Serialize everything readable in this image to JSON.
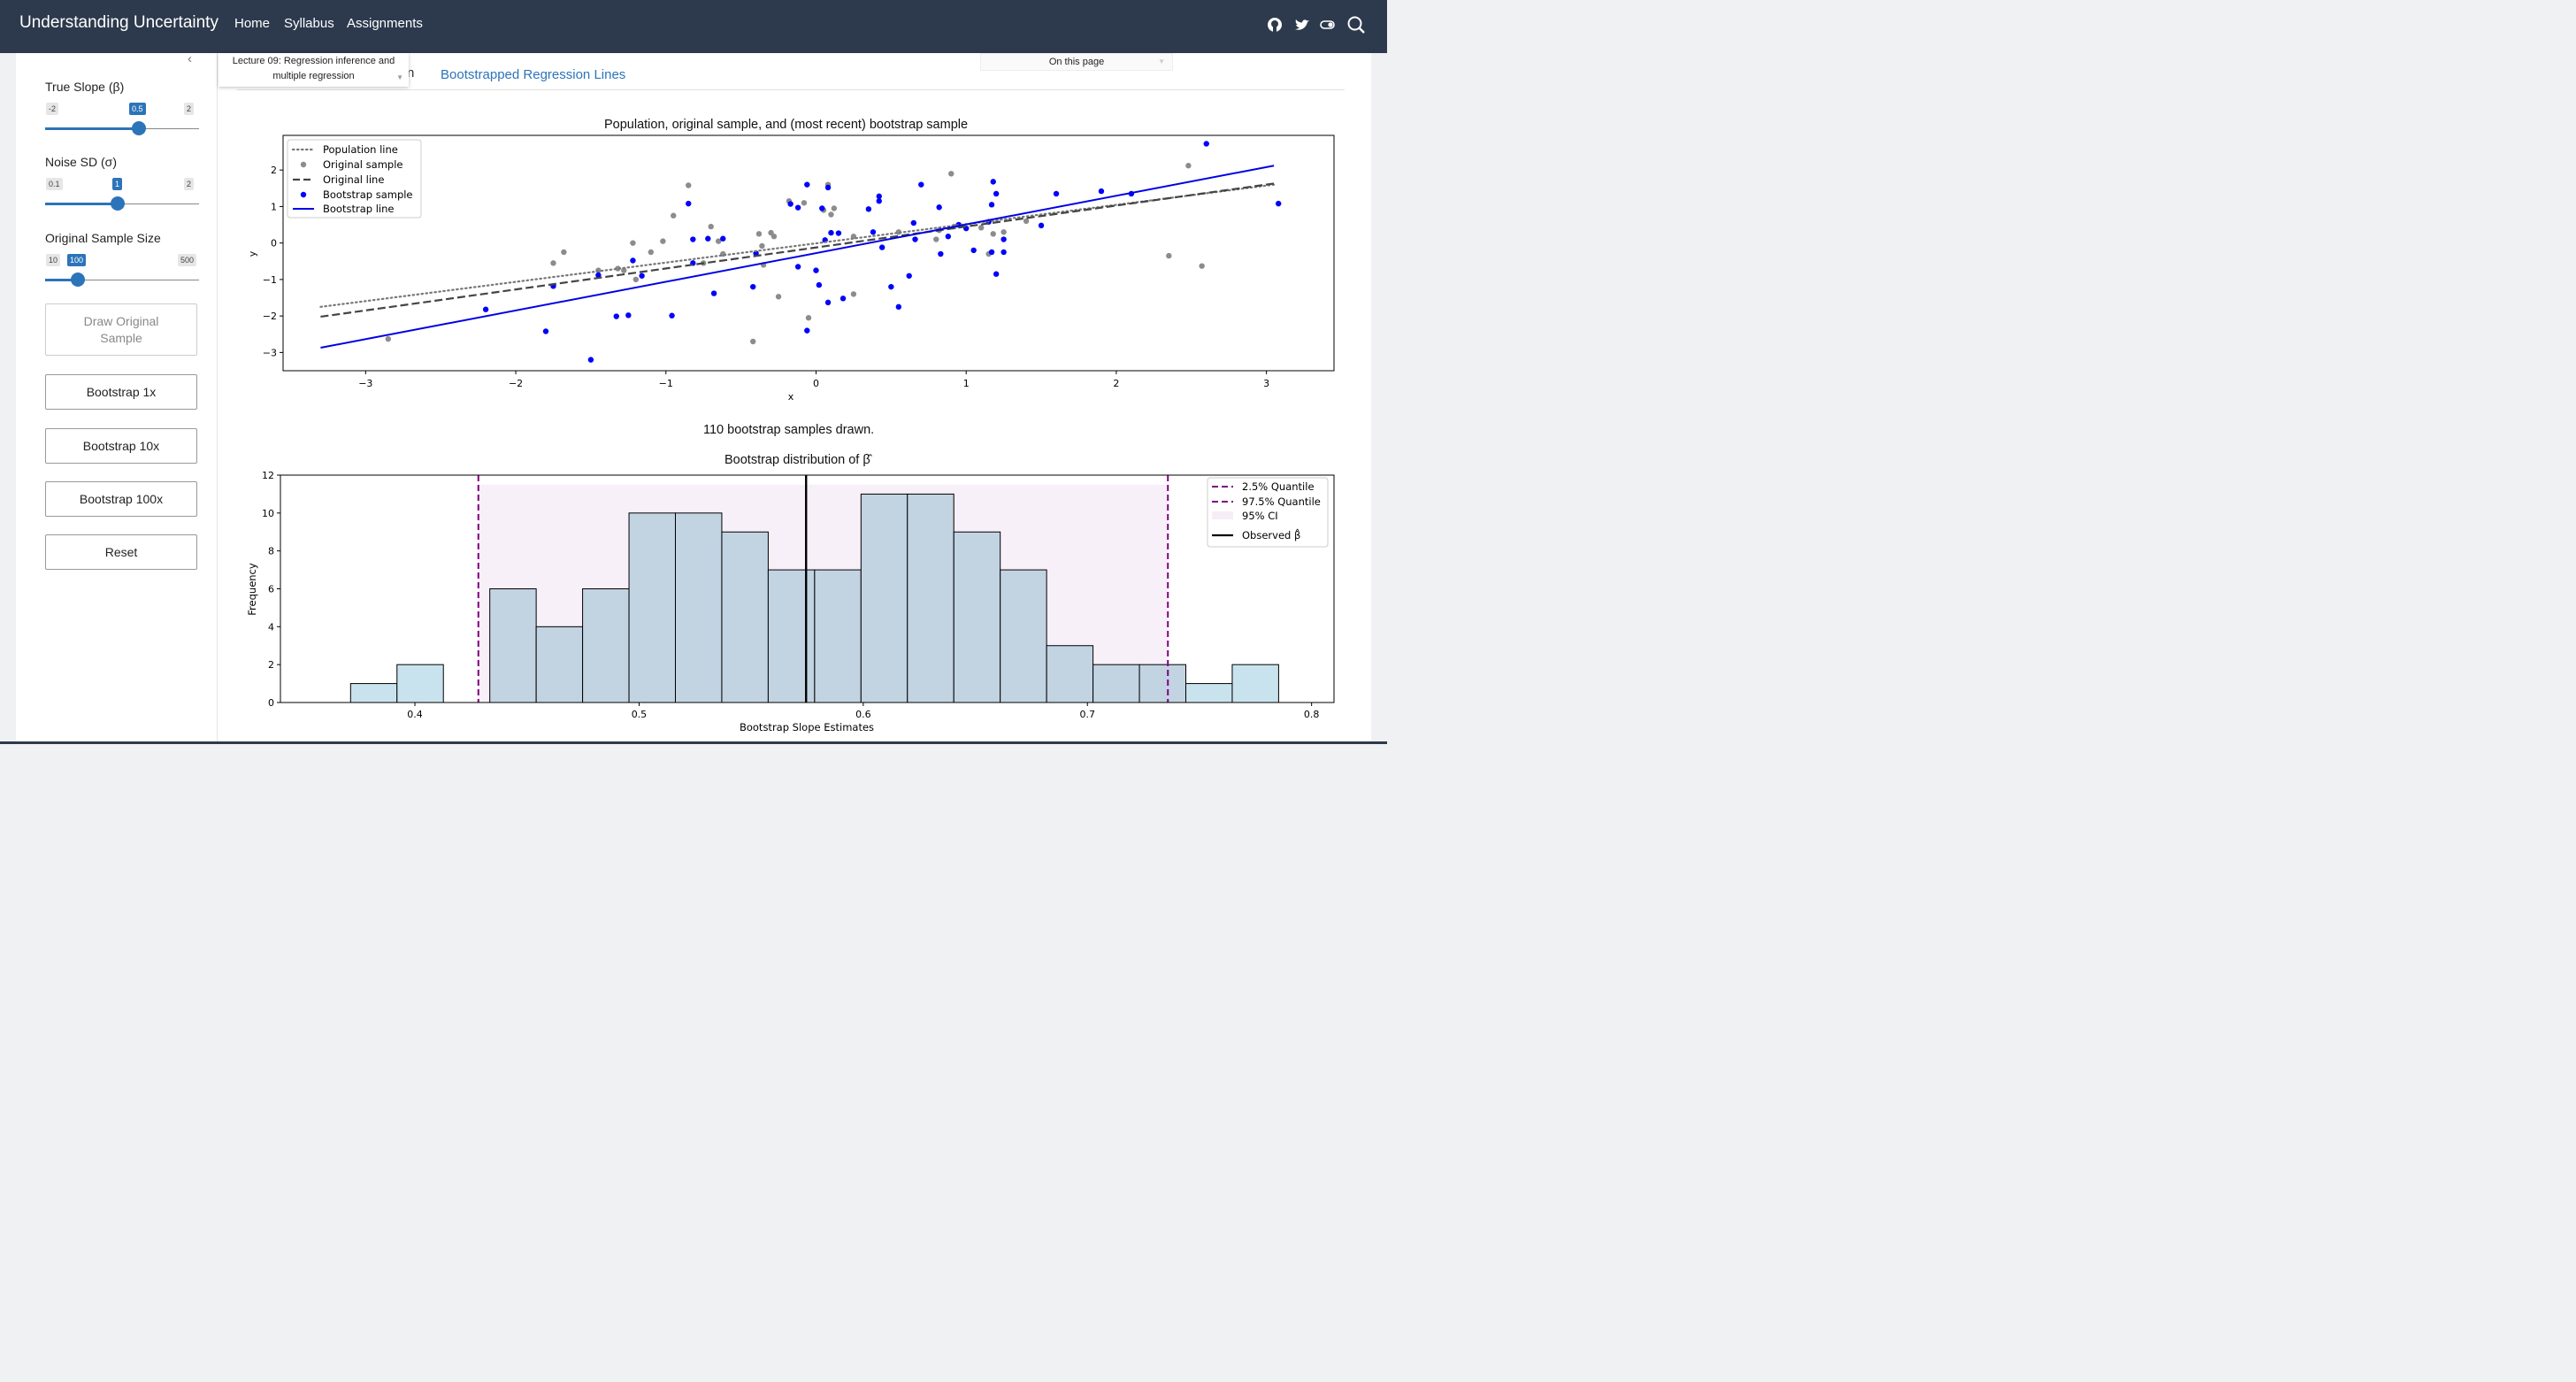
{
  "app": {
    "title": "Understanding Uncertainty",
    "nav": [
      "Home",
      "Syllabus",
      "Assignments"
    ],
    "icons": [
      "github-icon",
      "twitter-icon",
      "theme-toggle-icon",
      "search-icon"
    ]
  },
  "sidebar": {
    "slope": {
      "label": "True Slope (β)",
      "min": "-2",
      "value": "0.5",
      "max": "2",
      "fraction": 0.625
    },
    "noise": {
      "label": "Noise SD (σ)",
      "min": "0.1",
      "value": "1",
      "max": "2",
      "fraction": 0.47
    },
    "size": {
      "label": "Original Sample Size",
      "min": "10",
      "value": "100",
      "max": "500",
      "fraction": 0.18
    },
    "buttons": {
      "draw": "Draw Original Sample",
      "b1": "Bootstrap 1x",
      "b10": "Bootstrap 10x",
      "b100": "Bootstrap 100x",
      "reset": "Reset"
    }
  },
  "page": {
    "lecture_select": "Lecture 09: Regression inference and multiple regression",
    "tab_partial": "n",
    "tab_bootstrap": "Bootstrapped Regression Lines",
    "toc": "On this page",
    "count_text": "110 bootstrap samples drawn.",
    "colors": {
      "accent": "#2c74b9",
      "navbar": "#2d3a4d",
      "bootstrap": "#0000ff",
      "quantile": "#800080"
    }
  },
  "chart_data": [
    {
      "type": "scatter",
      "title": "Population, original sample, and (most recent) bootstrap sample",
      "xlabel": "x",
      "ylabel": "y",
      "xlim": [
        -3.55,
        3.45
      ],
      "ylim": [
        -3.5,
        2.95
      ],
      "xticks": [
        -3,
        -2,
        -1,
        0,
        1,
        2,
        3
      ],
      "xtick_labels": [
        "−3",
        "−2",
        "−1",
        "0",
        "1",
        "2",
        "3"
      ],
      "yticks": [
        -3,
        -2,
        -1,
        0,
        1,
        2
      ],
      "ytick_labels": [
        "−3",
        "−2",
        "−1",
        "0",
        "1",
        "2"
      ],
      "legend": [
        "Population line",
        "Original sample",
        "Original line",
        "Bootstrap sample",
        "Bootstrap line"
      ],
      "legend_position": "upper left",
      "lines": {
        "population": {
          "name": "Population line",
          "x": [
            -3.3,
            3.05
          ],
          "y": [
            -1.75,
            1.6
          ]
        },
        "original": {
          "name": "Original line",
          "x": [
            -3.3,
            3.05
          ],
          "y": [
            -2.02,
            1.63
          ]
        },
        "bootstrap": {
          "name": "Bootstrap line",
          "x": [
            -3.3,
            3.05
          ],
          "y": [
            -2.87,
            2.12
          ]
        }
      },
      "original_sample": [
        [
          -2.85,
          -2.63
        ],
        [
          -1.75,
          -0.55
        ],
        [
          -1.68,
          -0.25
        ],
        [
          -1.45,
          -0.75
        ],
        [
          -1.32,
          -0.7
        ],
        [
          -1.28,
          -0.75
        ],
        [
          -1.22,
          0
        ],
        [
          -1.2,
          -1
        ],
        [
          -1.1,
          -0.25
        ],
        [
          -1.02,
          0.05
        ],
        [
          -0.95,
          0.75
        ],
        [
          -0.85,
          1.58
        ],
        [
          -0.75,
          -0.55
        ],
        [
          -0.7,
          0.45
        ],
        [
          -0.65,
          0.05
        ],
        [
          -0.62,
          -0.3
        ],
        [
          -0.42,
          -2.7
        ],
        [
          -0.38,
          0.25
        ],
        [
          -0.36,
          -0.08
        ],
        [
          -0.35,
          -0.6
        ],
        [
          -0.3,
          0.28
        ],
        [
          -0.28,
          0.18
        ],
        [
          -0.25,
          -1.47
        ],
        [
          -0.18,
          1.15
        ],
        [
          -0.08,
          1.1
        ],
        [
          -0.05,
          -2.05
        ],
        [
          0.05,
          0.9
        ],
        [
          0.08,
          1.6
        ],
        [
          0.1,
          0.78
        ],
        [
          0.12,
          0.95
        ],
        [
          0.25,
          0.18
        ],
        [
          0.25,
          -1.4
        ],
        [
          0.55,
          0.3
        ],
        [
          0.8,
          0.1
        ],
        [
          0.82,
          0.35
        ],
        [
          0.9,
          1.9
        ],
        [
          0.92,
          0.45
        ],
        [
          0.95,
          0.5
        ],
        [
          1.1,
          0.42
        ],
        [
          1.15,
          -0.3
        ],
        [
          1.18,
          0.25
        ],
        [
          1.25,
          0.3
        ],
        [
          1.4,
          0.6
        ],
        [
          2.35,
          -0.35
        ],
        [
          2.48,
          2.12
        ],
        [
          2.57,
          -0.63
        ]
      ],
      "bootstrap_sample": [
        [
          -2.2,
          -1.82
        ],
        [
          -1.8,
          -2.42
        ],
        [
          -1.75,
          -1.18
        ],
        [
          -1.5,
          -3.2
        ],
        [
          -1.45,
          -0.88
        ],
        [
          -1.33,
          -2.01
        ],
        [
          -1.25,
          -1.98
        ],
        [
          -1.22,
          -0.48
        ],
        [
          -1.16,
          -0.9
        ],
        [
          -0.96,
          -1.99
        ],
        [
          -0.85,
          1.08
        ],
        [
          -0.82,
          -0.55
        ],
        [
          -0.82,
          0.1
        ],
        [
          -0.72,
          0.12
        ],
        [
          -0.68,
          -1.38
        ],
        [
          -0.62,
          0.12
        ],
        [
          -0.42,
          -1.2
        ],
        [
          -0.4,
          -0.28
        ],
        [
          -0.17,
          1.07
        ],
        [
          -0.12,
          0.97
        ],
        [
          -0.12,
          -0.65
        ],
        [
          -0.06,
          -2.4
        ],
        [
          -0.06,
          1.6
        ],
        [
          0,
          -0.75
        ],
        [
          0.02,
          -1.15
        ],
        [
          0.04,
          0.95
        ],
        [
          0.06,
          0.08
        ],
        [
          0.08,
          -1.63
        ],
        [
          0.08,
          1.52
        ],
        [
          0.1,
          0.28
        ],
        [
          0.15,
          0.27
        ],
        [
          0.18,
          -1.52
        ],
        [
          0.35,
          0.93
        ],
        [
          0.38,
          0.3
        ],
        [
          0.42,
          1.15
        ],
        [
          0.42,
          1.28
        ],
        [
          0.44,
          -0.12
        ],
        [
          0.5,
          -1.2
        ],
        [
          0.55,
          -1.75
        ],
        [
          0.62,
          -0.9
        ],
        [
          0.65,
          0.55
        ],
        [
          0.66,
          0.1
        ],
        [
          0.7,
          1.6
        ],
        [
          0.82,
          0.98
        ],
        [
          0.83,
          -0.3
        ],
        [
          0.88,
          0.18
        ],
        [
          0.95,
          0.5
        ],
        [
          1.0,
          0.4
        ],
        [
          1.05,
          -0.2
        ],
        [
          1.15,
          0.58
        ],
        [
          1.17,
          -0.25
        ],
        [
          1.17,
          1.05
        ],
        [
          1.18,
          1.68
        ],
        [
          1.2,
          1.35
        ],
        [
          1.2,
          -0.85
        ],
        [
          1.25,
          -0.25
        ],
        [
          1.25,
          0.1
        ],
        [
          1.5,
          0.48
        ],
        [
          1.6,
          1.35
        ],
        [
          1.9,
          1.42
        ],
        [
          2.1,
          1.35
        ],
        [
          2.6,
          2.72
        ],
        [
          3.08,
          1.08
        ]
      ]
    },
    {
      "type": "bar",
      "title": "Bootstrap distribution of β̂",
      "xlabel": "Bootstrap Slope Estimates",
      "ylabel": "Frequency",
      "xlim": [
        0.34,
        0.81
      ],
      "ylim": [
        0,
        12
      ],
      "xticks": [
        0.4,
        0.5,
        0.6,
        0.7,
        0.8
      ],
      "xtick_labels": [
        "0.4",
        "0.5",
        "0.6",
        "0.7",
        "0.8"
      ],
      "yticks": [
        0,
        2,
        4,
        6,
        8,
        10,
        12
      ],
      "ytick_labels": [
        "0",
        "2",
        "4",
        "6",
        "8",
        "10",
        "12"
      ],
      "legend": [
        "2.5% Quantile",
        "97.5% Quantile",
        "95% CI",
        "Observed β̂"
      ],
      "legend_position": "upper right",
      "bin_width": 0.0207,
      "bin_starts": [
        0.3713,
        0.392,
        0.4127,
        0.4334,
        0.4541,
        0.4748,
        0.4955,
        0.5162,
        0.5369,
        0.5576,
        0.5783,
        0.599,
        0.6197,
        0.6404,
        0.6611,
        0.6818,
        0.7025,
        0.7232,
        0.7439,
        0.7646
      ],
      "values": [
        1,
        2,
        0,
        6,
        4,
        6,
        10,
        10,
        9,
        7,
        7,
        11,
        11,
        9,
        7,
        3,
        2,
        2,
        1,
        2
      ],
      "q025": 0.4283,
      "q975": 0.7359,
      "observed": 0.5745,
      "total": 110
    }
  ]
}
